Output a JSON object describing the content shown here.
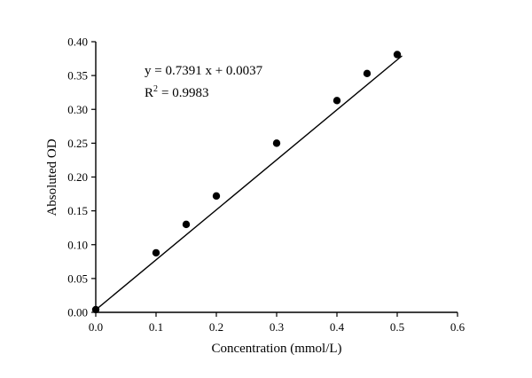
{
  "chart_data": {
    "type": "scatter",
    "title": "",
    "xlabel": "Concentration (mmol/L)",
    "ylabel": "Absoluted OD",
    "xlim": [
      0.0,
      0.6
    ],
    "ylim": [
      0.0,
      0.4
    ],
    "x_ticks": [
      0.0,
      0.1,
      0.2,
      0.3,
      0.4,
      0.5,
      0.6
    ],
    "x_tick_labels": [
      "0.0",
      "0.1",
      "0.2",
      "0.3",
      "0.4",
      "0.5",
      "0.6"
    ],
    "y_ticks": [
      0.0,
      0.05,
      0.1,
      0.15,
      0.2,
      0.25,
      0.3,
      0.35,
      0.4
    ],
    "y_tick_labels": [
      "0.00",
      "0.05",
      "0.10",
      "0.15",
      "0.20",
      "0.25",
      "0.30",
      "0.35",
      "0.40"
    ],
    "grid": false,
    "legend": "none",
    "points": [
      {
        "x": 0.0,
        "y": 0.004
      },
      {
        "x": 0.1,
        "y": 0.088
      },
      {
        "x": 0.15,
        "y": 0.13
      },
      {
        "x": 0.2,
        "y": 0.172
      },
      {
        "x": 0.3,
        "y": 0.25
      },
      {
        "x": 0.4,
        "y": 0.313
      },
      {
        "x": 0.45,
        "y": 0.353
      },
      {
        "x": 0.5,
        "y": 0.381
      }
    ],
    "fit_line": {
      "slope": 0.7391,
      "intercept": 0.0037,
      "r_squared": 0.9983,
      "x_start": 0.0,
      "x_end": 0.508
    },
    "annotation": {
      "equation": "y = 0.7391 x + 0.0037",
      "r_label": "R",
      "r_exponent": "2",
      "r_value": "= 0.9983"
    },
    "colors": {
      "marker": "#000000",
      "line": "#000000",
      "axis": "#000000",
      "background": "#ffffff"
    }
  }
}
